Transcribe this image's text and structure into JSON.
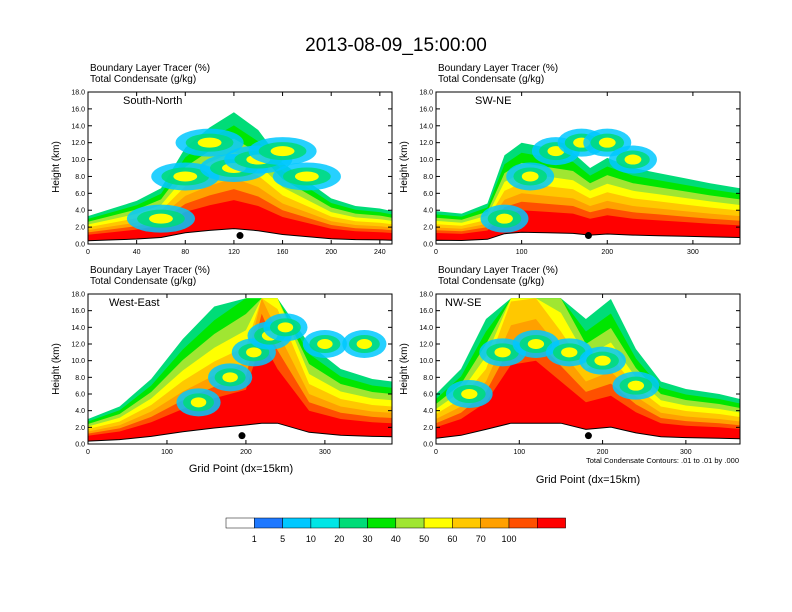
{
  "page_title": "2013-08-09_15:00:00",
  "panel_label_line1": "Boundary Layer Tracer   (%)",
  "panel_label_line2": "Total Condensate   (g/kg)",
  "y_axis_label": "Height (km)",
  "x_axis_label": "Grid Point (dx=15km)",
  "contour_note": "Total Condensate Contours: .01 to .01 by .000",
  "colorbar": {
    "labels": [
      "1",
      "5",
      "10",
      "20",
      "30",
      "40",
      "50",
      "60",
      "70",
      "100"
    ],
    "colors": [
      "#ffffff",
      "#1e78ff",
      "#00c8ff",
      "#00e6e6",
      "#00dc78",
      "#00e600",
      "#a0e632",
      "#ffff00",
      "#ffc800",
      "#ffa000",
      "#ff5000",
      "#ff0000"
    ]
  },
  "chart_data": [
    {
      "type": "heatmap",
      "title": "South-North",
      "xlim": [
        0,
        250
      ],
      "x_ticks": [
        "0",
        "40",
        "80",
        "120",
        "160",
        "200",
        "240"
      ],
      "ylim": [
        0,
        18
      ],
      "y_ticks": [
        "0.0",
        "2.0",
        "4.0",
        "6.0",
        "8.0",
        "10.0",
        "12.0",
        "14.0",
        "16.0",
        "18.0"
      ],
      "marker": {
        "x": 125,
        "y": 1.0
      },
      "tracer_top_profile": [
        [
          0,
          1.1
        ],
        [
          20,
          1.4
        ],
        [
          40,
          1.7
        ],
        [
          60,
          2.2
        ],
        [
          80,
          3.8
        ],
        [
          100,
          4.6
        ],
        [
          120,
          5.2
        ],
        [
          140,
          4.5
        ],
        [
          160,
          3.2
        ],
        [
          180,
          2.5
        ],
        [
          200,
          1.8
        ],
        [
          220,
          1.5
        ],
        [
          240,
          1.4
        ],
        [
          250,
          1.3
        ]
      ],
      "plume": [
        [
          60,
          3
        ],
        [
          80,
          8
        ],
        [
          100,
          12
        ],
        [
          120,
          9
        ],
        [
          140,
          10
        ],
        [
          160,
          11
        ],
        [
          180,
          8
        ]
      ]
    },
    {
      "type": "heatmap",
      "title": "SW-NE",
      "xlim": [
        0,
        355
      ],
      "x_ticks": [
        "0",
        "100",
        "200",
        "300"
      ],
      "ylim": [
        0,
        18
      ],
      "y_ticks": [
        "0.0",
        "2.0",
        "4.0",
        "6.0",
        "8.0",
        "10.0",
        "12.0",
        "14.0",
        "16.0",
        "18.0"
      ],
      "marker": {
        "x": 178,
        "y": 1.0
      },
      "tracer_top_profile": [
        [
          0,
          1.3
        ],
        [
          30,
          1.2
        ],
        [
          60,
          1.6
        ],
        [
          80,
          3.5
        ],
        [
          100,
          4.0
        ],
        [
          130,
          3.8
        ],
        [
          160,
          3.6
        ],
        [
          180,
          3.0
        ],
        [
          200,
          3.4
        ],
        [
          230,
          3.0
        ],
        [
          260,
          2.8
        ],
        [
          290,
          2.6
        ],
        [
          320,
          2.4
        ],
        [
          355,
          2.2
        ]
      ],
      "plume": [
        [
          80,
          3
        ],
        [
          110,
          8
        ],
        [
          140,
          11
        ],
        [
          170,
          12
        ],
        [
          200,
          12
        ],
        [
          230,
          10
        ]
      ]
    },
    {
      "type": "heatmap",
      "title": "West-East",
      "xlim": [
        0,
        385
      ],
      "x_ticks": [
        "0",
        "100",
        "200",
        "300"
      ],
      "ylim": [
        0,
        18
      ],
      "y_ticks": [
        "0.0",
        "2.0",
        "4.0",
        "6.0",
        "8.0",
        "10.0",
        "12.0",
        "14.0",
        "16.0",
        "18.0"
      ],
      "marker": {
        "x": 195,
        "y": 1.0
      },
      "tracer_top_profile": [
        [
          0,
          1.0
        ],
        [
          40,
          1.5
        ],
        [
          80,
          2.6
        ],
        [
          120,
          4.2
        ],
        [
          160,
          5.5
        ],
        [
          200,
          6.5
        ],
        [
          220,
          12.5
        ],
        [
          240,
          9.0
        ],
        [
          280,
          4.0
        ],
        [
          320,
          3.0
        ],
        [
          360,
          2.6
        ],
        [
          385,
          2.5
        ]
      ],
      "plume": [
        [
          140,
          5
        ],
        [
          180,
          8
        ],
        [
          210,
          11
        ],
        [
          230,
          13
        ],
        [
          250,
          14
        ],
        [
          300,
          12
        ],
        [
          350,
          12
        ]
      ]
    },
    {
      "type": "heatmap",
      "title": "NW-SE",
      "xlim": [
        0,
        365
      ],
      "x_ticks": [
        "0",
        "100",
        "200",
        "300"
      ],
      "ylim": [
        0,
        18
      ],
      "y_ticks": [
        "0.0",
        "2.0",
        "4.0",
        "6.0",
        "8.0",
        "10.0",
        "12.0",
        "14.0",
        "16.0",
        "18.0"
      ],
      "marker": {
        "x": 183,
        "y": 1.0
      },
      "tracer_top_profile": [
        [
          0,
          2.0
        ],
        [
          30,
          3.0
        ],
        [
          60,
          5.0
        ],
        [
          90,
          9.5
        ],
        [
          120,
          10.0
        ],
        [
          150,
          7.5
        ],
        [
          180,
          5.0
        ],
        [
          210,
          5.8
        ],
        [
          240,
          3.8
        ],
        [
          270,
          2.5
        ],
        [
          300,
          2.2
        ],
        [
          340,
          2.0
        ],
        [
          365,
          1.8
        ]
      ],
      "plume": [
        [
          40,
          6
        ],
        [
          80,
          11
        ],
        [
          120,
          12
        ],
        [
          160,
          11
        ],
        [
          200,
          10
        ],
        [
          240,
          7
        ]
      ]
    }
  ]
}
